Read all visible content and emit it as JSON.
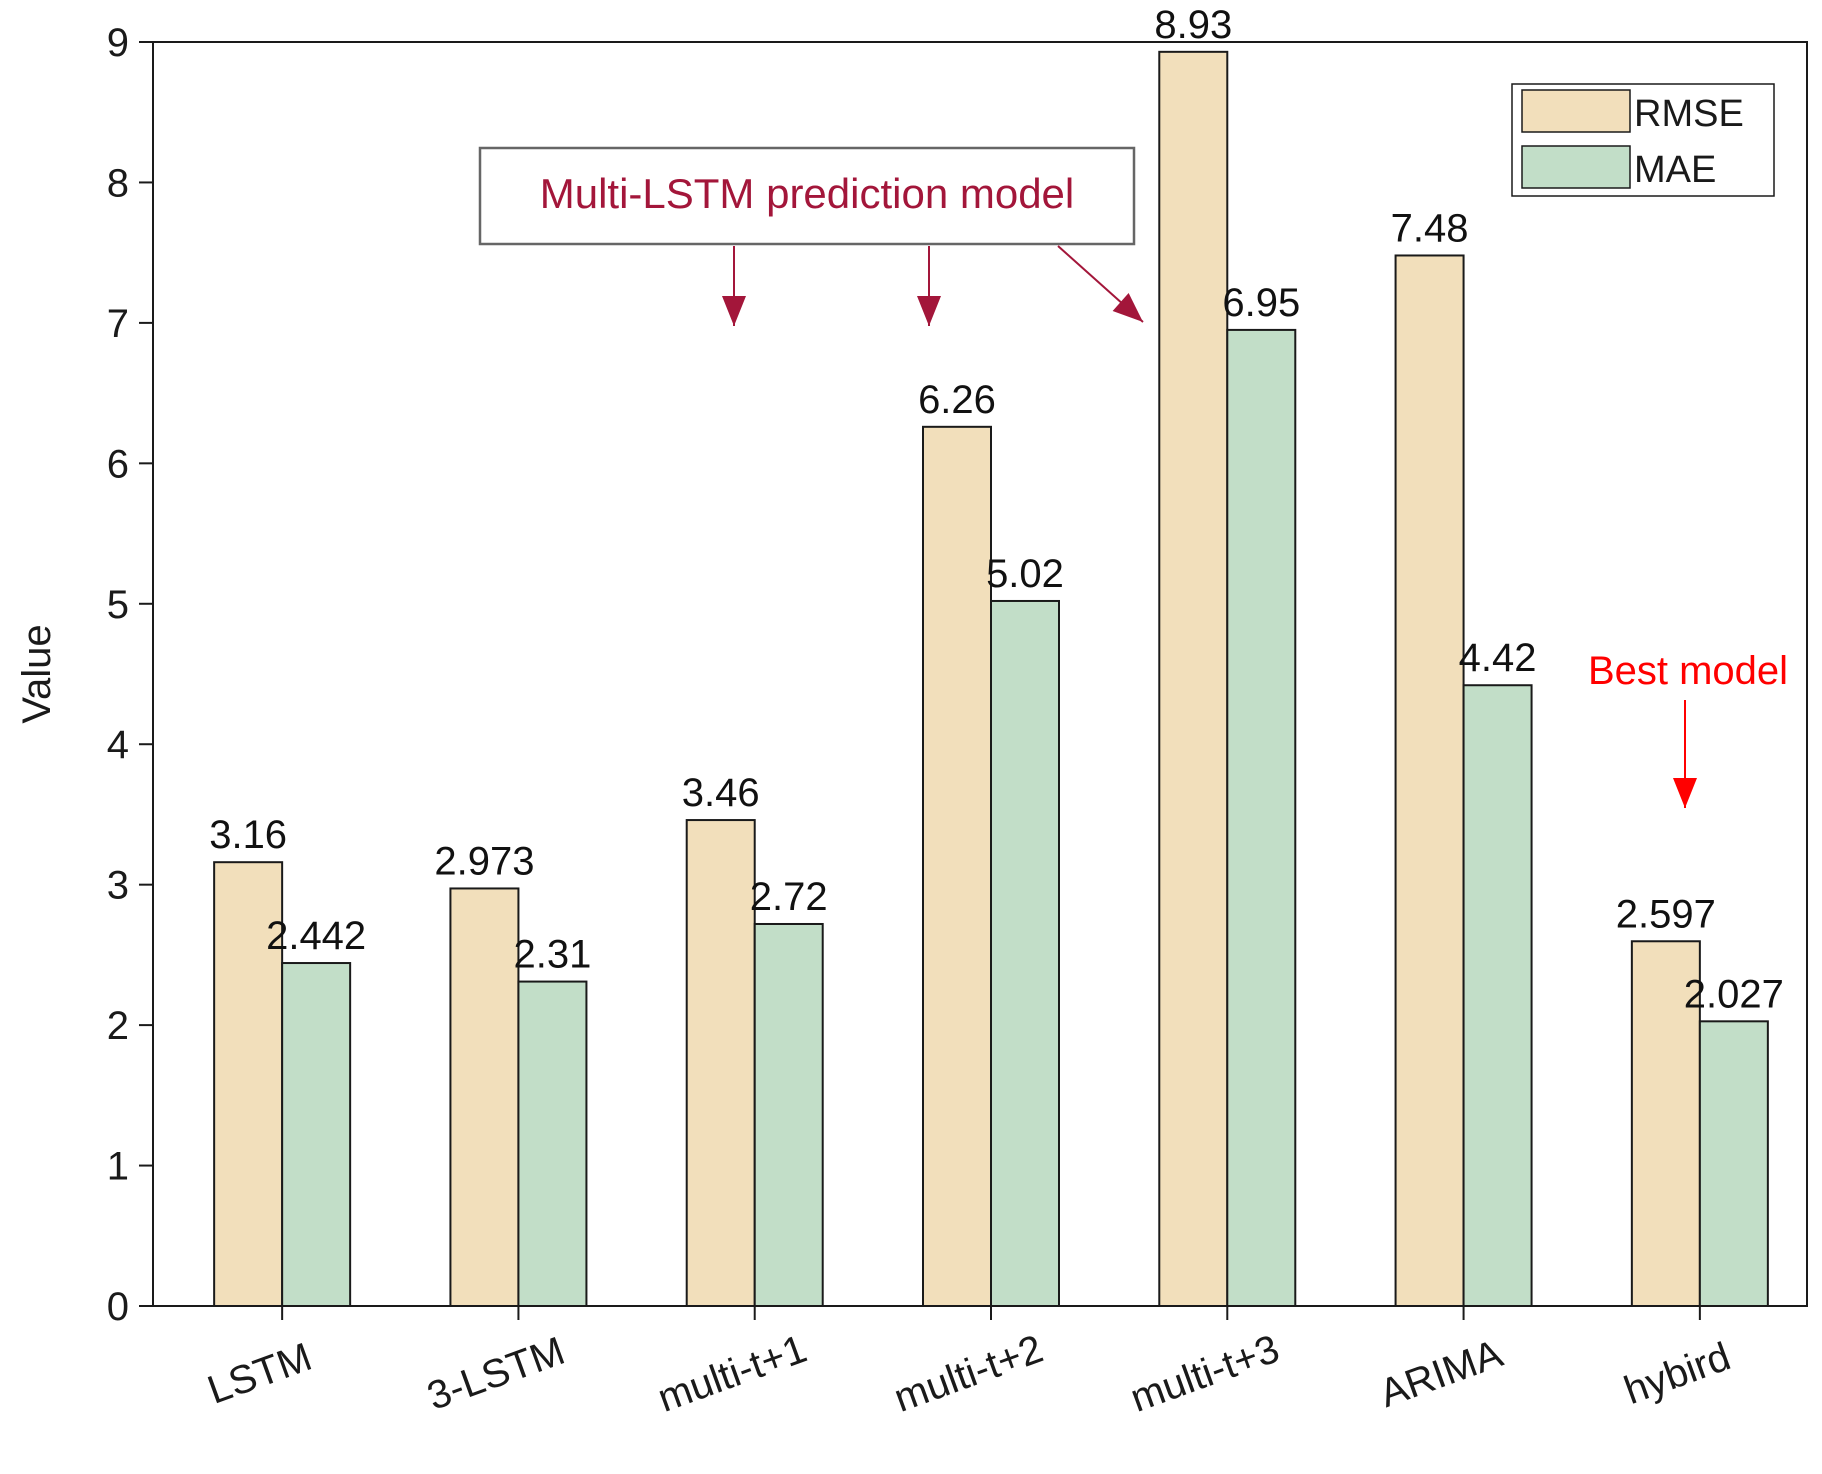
{
  "chart_data": {
    "type": "bar",
    "categories": [
      "LSTM",
      "3-LSTM",
      "multi-t+1",
      "multi-t+2",
      "multi-t+3",
      "ARIMA",
      "hybird"
    ],
    "series": [
      {
        "name": "RMSE",
        "values": [
          3.16,
          2.973,
          3.46,
          6.26,
          8.93,
          7.48,
          2.597
        ],
        "labels": [
          "3.16",
          "2.973",
          "3.46",
          "6.26",
          "8.93",
          "7.48",
          "2.597"
        ]
      },
      {
        "name": "MAE",
        "values": [
          2.442,
          2.31,
          2.72,
          5.02,
          6.95,
          4.42,
          2.027
        ],
        "labels": [
          "2.442",
          "2.31",
          "2.72",
          "5.02",
          "6.95",
          "4.42",
          "2.027"
        ]
      }
    ],
    "xlabel": "",
    "ylabel": "Value",
    "ylim": [
      0,
      9
    ],
    "yticks": [
      "0",
      "1",
      "2",
      "3",
      "4",
      "5",
      "6",
      "7",
      "8",
      "9"
    ],
    "grid": false,
    "legend_position": "top-right",
    "colors": {
      "RMSE": "#f2dfbb",
      "MAE": "#c2dec8",
      "annotation": "#a3163a",
      "best": "#ff0000"
    },
    "annotations": {
      "multi_lstm": "Multi-LSTM prediction model",
      "best_model": "Best model"
    }
  }
}
